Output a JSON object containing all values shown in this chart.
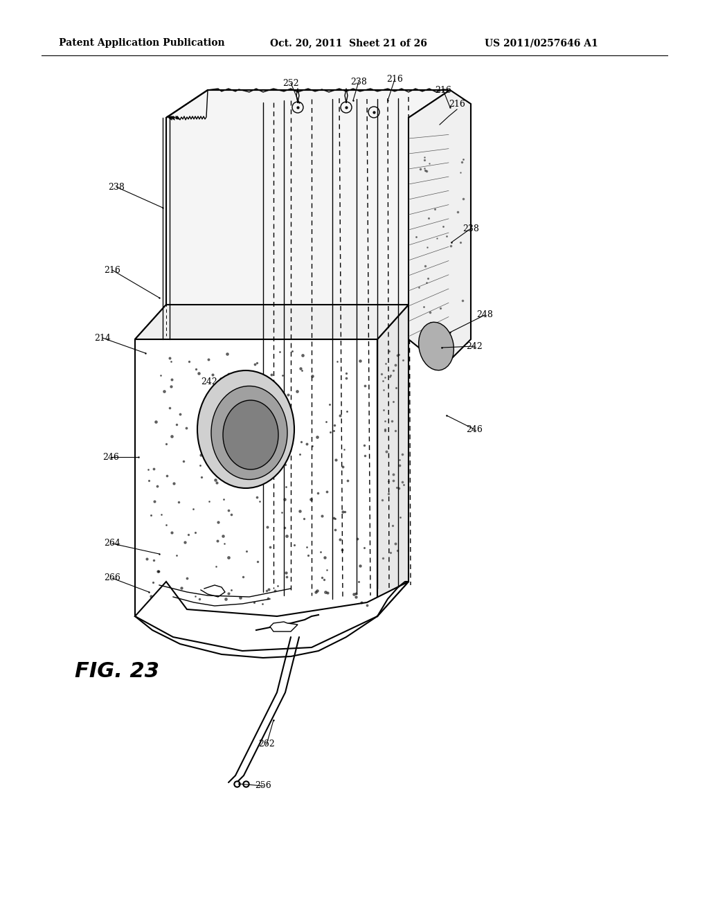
{
  "header_left": "Patent Application Publication",
  "header_center": "Oct. 20, 2011  Sheet 21 of 26",
  "header_right": "US 2011/0257646 A1",
  "fig_label": "FIG. 23",
  "background_color": "#ffffff",
  "line_color": "#000000",
  "ref_numbers": [
    "214",
    "216",
    "238",
    "242",
    "246",
    "248",
    "252",
    "256",
    "262",
    "264",
    "266"
  ],
  "header_fontsize": 10,
  "fig_label_fontsize": 18
}
